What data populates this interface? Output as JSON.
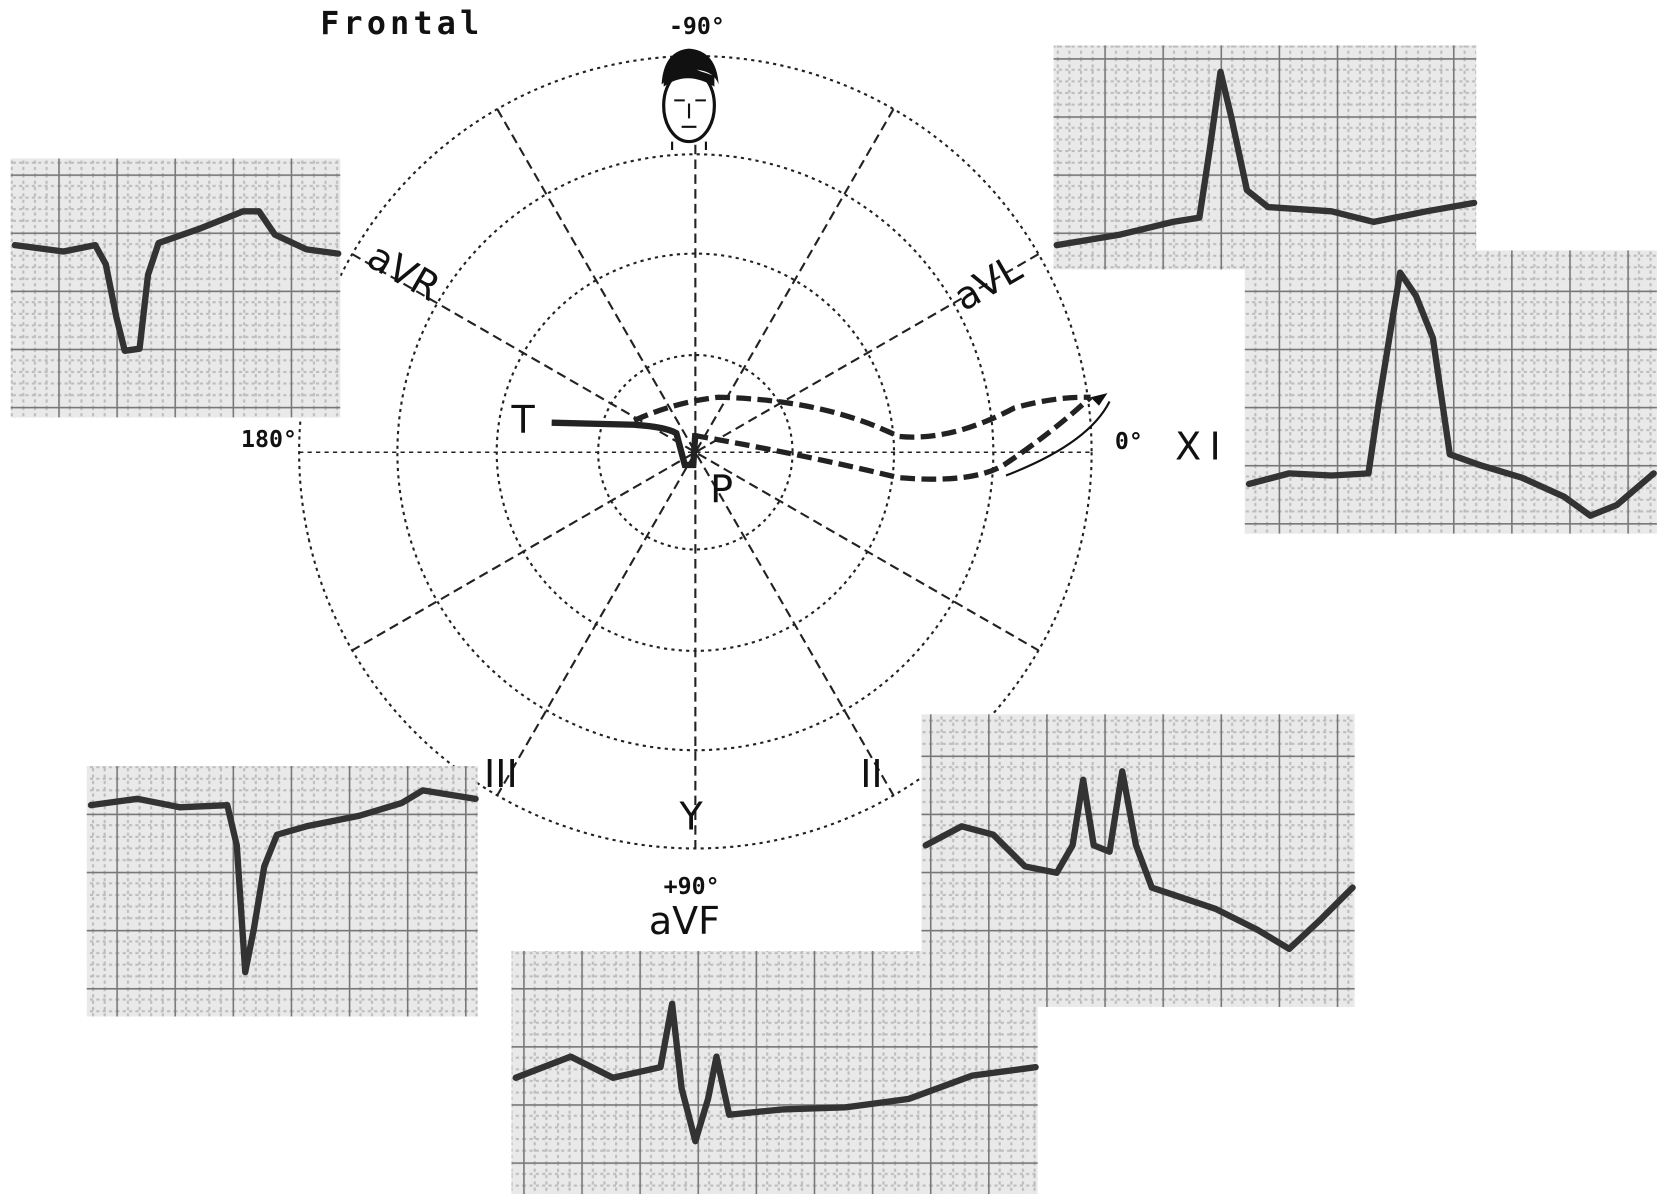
{
  "title": "Frontal",
  "angles": {
    "top": "-90°",
    "left": "180°",
    "right": "0°",
    "bottom": "+90°"
  },
  "leads": {
    "avr": "aVR",
    "avl": "aVL",
    "avf": "aVF",
    "xi": "XI",
    "iii": "III",
    "ii": "II",
    "y": "Y"
  },
  "loop": {
    "t": "T",
    "p": "P"
  }
}
